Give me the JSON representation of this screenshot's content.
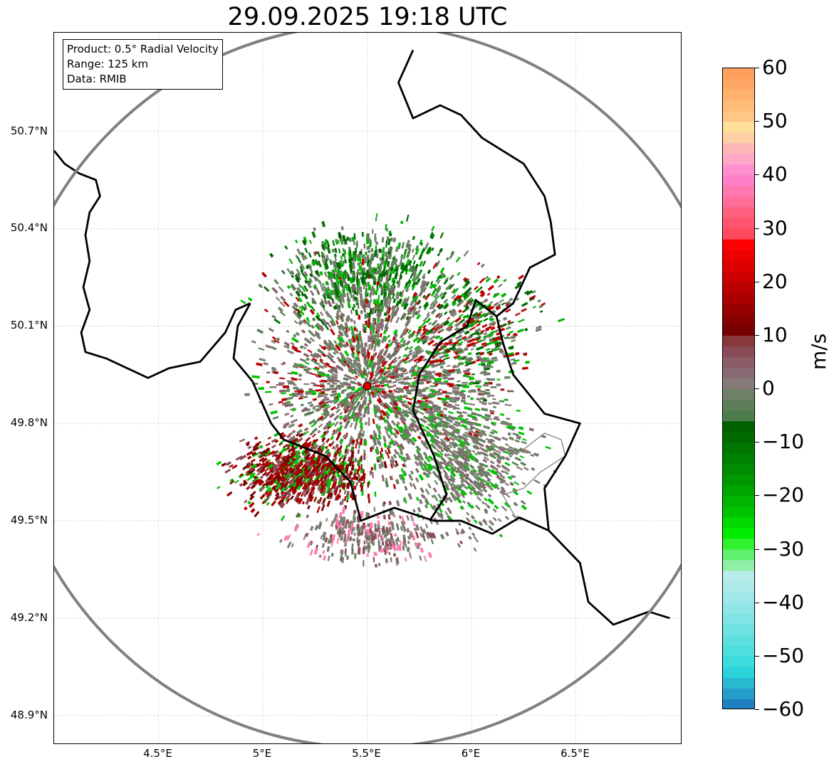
{
  "title": "29.09.2025 19:18 UTC",
  "info": {
    "product": "Product: 0.5° Radial Velocity",
    "range": "Range: 125 km",
    "source": "Data: RMIB"
  },
  "axes": {
    "lat_ticks": [
      {
        "value": 50.7,
        "label": "50.7°N"
      },
      {
        "value": 50.4,
        "label": "50.4°N"
      },
      {
        "value": 50.1,
        "label": "50.1°N"
      },
      {
        "value": 49.8,
        "label": "49.8°N"
      },
      {
        "value": 49.5,
        "label": "49.5°N"
      },
      {
        "value": 49.2,
        "label": "49.2°N"
      },
      {
        "value": 48.9,
        "label": "48.9°N"
      }
    ],
    "lon_ticks": [
      {
        "value": 4.5,
        "label": "4.5°E"
      },
      {
        "value": 5.0,
        "label": "5°E"
      },
      {
        "value": 5.5,
        "label": "5.5°E"
      },
      {
        "value": 6.0,
        "label": "6°E"
      },
      {
        "value": 6.5,
        "label": "6.5°E"
      }
    ],
    "lon_range": [
      4.0,
      7.0
    ],
    "lat_range": [
      48.8,
      51.0
    ]
  },
  "radar": {
    "site_lon": 5.5,
    "site_lat": 49.915,
    "range_km": 125,
    "site_color": "#e00000",
    "ring_color": "#808080"
  },
  "colorbar": {
    "unit": "m/s",
    "min": -60,
    "max": 60,
    "ticks": [
      {
        "value": 60,
        "label": "60"
      },
      {
        "value": 50,
        "label": "50"
      },
      {
        "value": 40,
        "label": "40"
      },
      {
        "value": 30,
        "label": "30"
      },
      {
        "value": 20,
        "label": "20"
      },
      {
        "value": 10,
        "label": "10"
      },
      {
        "value": 0,
        "label": "0"
      },
      {
        "value": -10,
        "label": "−10"
      },
      {
        "value": -20,
        "label": "−20"
      },
      {
        "value": -30,
        "label": "−30"
      },
      {
        "value": -40,
        "label": "−40"
      },
      {
        "value": -50,
        "label": "−50"
      },
      {
        "value": -60,
        "label": "−60"
      }
    ],
    "bands": [
      {
        "from": 58,
        "to": 60,
        "color": "#ff9f5e"
      },
      {
        "from": 56,
        "to": 58,
        "color": "#ffa866"
      },
      {
        "from": 54,
        "to": 56,
        "color": "#ffb26e"
      },
      {
        "from": 52,
        "to": 54,
        "color": "#ffbd78"
      },
      {
        "from": 50,
        "to": 52,
        "color": "#ffc785"
      },
      {
        "from": 48,
        "to": 50,
        "color": "#ffe09a"
      },
      {
        "from": 46,
        "to": 48,
        "color": "#ffd0a6"
      },
      {
        "from": 44,
        "to": 46,
        "color": "#ffb8b8"
      },
      {
        "from": 42,
        "to": 44,
        "color": "#ffa8c8"
      },
      {
        "from": 40,
        "to": 42,
        "color": "#ff90d0"
      },
      {
        "from": 38,
        "to": 40,
        "color": "#ff80c8"
      },
      {
        "from": 36,
        "to": 38,
        "color": "#ff78b0"
      },
      {
        "from": 34,
        "to": 36,
        "color": "#ff6e98"
      },
      {
        "from": 32,
        "to": 34,
        "color": "#ff6080"
      },
      {
        "from": 30,
        "to": 32,
        "color": "#ff5570"
      },
      {
        "from": 28,
        "to": 30,
        "color": "#ff4a5e"
      },
      {
        "from": 26,
        "to": 28,
        "color": "#ff0000"
      },
      {
        "from": 24,
        "to": 26,
        "color": "#ee0000"
      },
      {
        "from": 22,
        "to": 24,
        "color": "#dd0000"
      },
      {
        "from": 20,
        "to": 22,
        "color": "#cc0000"
      },
      {
        "from": 18,
        "to": 20,
        "color": "#bb0000"
      },
      {
        "from": 16,
        "to": 18,
        "color": "#aa0000"
      },
      {
        "from": 14,
        "to": 16,
        "color": "#990000"
      },
      {
        "from": 12,
        "to": 14,
        "color": "#880000"
      },
      {
        "from": 10,
        "to": 12,
        "color": "#770000"
      },
      {
        "from": 8,
        "to": 10,
        "color": "#883838"
      },
      {
        "from": 6,
        "to": 8,
        "color": "#8a4c56"
      },
      {
        "from": 4,
        "to": 6,
        "color": "#8a5c68"
      },
      {
        "from": 2,
        "to": 4,
        "color": "#886a72"
      },
      {
        "from": 0,
        "to": 2,
        "color": "#857a76"
      },
      {
        "from": -2,
        "to": 0,
        "color": "#6e8068"
      },
      {
        "from": -4,
        "to": -2,
        "color": "#5e7e5a"
      },
      {
        "from": -6,
        "to": -4,
        "color": "#4e7c4c"
      },
      {
        "from": -8,
        "to": -6,
        "color": "#006000"
      },
      {
        "from": -10,
        "to": -8,
        "color": "#006a00"
      },
      {
        "from": -12,
        "to": -10,
        "color": "#007500"
      },
      {
        "from": -14,
        "to": -12,
        "color": "#008000"
      },
      {
        "from": -16,
        "to": -14,
        "color": "#008c00"
      },
      {
        "from": -18,
        "to": -16,
        "color": "#009800"
      },
      {
        "from": -20,
        "to": -18,
        "color": "#00a400"
      },
      {
        "from": -22,
        "to": -20,
        "color": "#00b400"
      },
      {
        "from": -24,
        "to": -22,
        "color": "#00c400"
      },
      {
        "from": -26,
        "to": -24,
        "color": "#00d800"
      },
      {
        "from": -28,
        "to": -26,
        "color": "#00ec00"
      },
      {
        "from": -30,
        "to": -28,
        "color": "#30f030"
      },
      {
        "from": -32,
        "to": -30,
        "color": "#60f070"
      },
      {
        "from": -34,
        "to": -32,
        "color": "#90f0a8"
      },
      {
        "from": -36,
        "to": -34,
        "color": "#b8ecea"
      },
      {
        "from": -38,
        "to": -36,
        "color": "#aeeaea"
      },
      {
        "from": -40,
        "to": -38,
        "color": "#a0e8e8"
      },
      {
        "from": -42,
        "to": -40,
        "color": "#90e6e6"
      },
      {
        "from": -44,
        "to": -42,
        "color": "#80e4e4"
      },
      {
        "from": -46,
        "to": -44,
        "color": "#70e2e2"
      },
      {
        "from": -48,
        "to": -46,
        "color": "#5ee0e0"
      },
      {
        "from": -50,
        "to": -48,
        "color": "#4ddede"
      },
      {
        "from": -52,
        "to": -50,
        "color": "#3adcdc"
      },
      {
        "from": -54,
        "to": -52,
        "color": "#2ad4d8"
      },
      {
        "from": -56,
        "to": -54,
        "color": "#28b8d0"
      },
      {
        "from": -58,
        "to": -56,
        "color": "#249ccc"
      },
      {
        "from": -60,
        "to": -58,
        "color": "#2080c0"
      }
    ]
  },
  "echo_regions": [
    {
      "name": "north",
      "lon": 5.5,
      "lat": 50.25,
      "spread_lon": 0.35,
      "spread_lat": 0.12,
      "count": 700,
      "palette": [
        "#006000",
        "#007500",
        "#5e7e5a",
        "#00b400",
        "#6e8068"
      ]
    },
    {
      "name": "center",
      "lon": 5.55,
      "lat": 49.95,
      "spread_lon": 0.45,
      "spread_lat": 0.25,
      "count": 1700,
      "palette": [
        "#857a76",
        "#8a5c68",
        "#6e8068",
        "#886a72",
        "#00c400",
        "#bb0000",
        "#5e7e5a"
      ]
    },
    {
      "name": "southwest",
      "lon": 5.2,
      "lat": 49.65,
      "spread_lon": 0.28,
      "spread_lat": 0.09,
      "count": 900,
      "palette": [
        "#770000",
        "#990000",
        "#aa0000",
        "#8a4c56",
        "#00c400"
      ]
    },
    {
      "name": "southeast",
      "lon": 5.95,
      "lat": 49.7,
      "spread_lon": 0.3,
      "spread_lat": 0.2,
      "count": 800,
      "palette": [
        "#5e7e5a",
        "#6e8068",
        "#857a76",
        "#00c400",
        "#886a72"
      ]
    },
    {
      "name": "east",
      "lon": 6.05,
      "lat": 50.1,
      "spread_lon": 0.25,
      "spread_lat": 0.15,
      "count": 350,
      "palette": [
        "#00b400",
        "#6e8068",
        "#006a00",
        "#bb0000"
      ]
    },
    {
      "name": "south",
      "lon": 5.5,
      "lat": 49.45,
      "spread_lon": 0.3,
      "spread_lat": 0.07,
      "count": 300,
      "palette": [
        "#857a76",
        "#8a4c56",
        "#ff78b0",
        "#6e8068"
      ]
    }
  ],
  "borders": {
    "bold": [
      [
        [
          4.0,
          50.64
        ],
        [
          4.05,
          50.6
        ],
        [
          4.12,
          50.57
        ],
        [
          4.2,
          50.55
        ],
        [
          4.22,
          50.5
        ],
        [
          4.17,
          50.45
        ],
        [
          4.15,
          50.38
        ],
        [
          4.17,
          50.3
        ],
        [
          4.14,
          50.22
        ],
        [
          4.17,
          50.15
        ],
        [
          4.13,
          50.08
        ],
        [
          4.15,
          50.02
        ],
        [
          4.25,
          50.0
        ],
        [
          4.45,
          49.94
        ],
        [
          4.55,
          49.97
        ],
        [
          4.7,
          49.99
        ],
        [
          4.82,
          50.08
        ],
        [
          4.87,
          50.15
        ],
        [
          4.94,
          50.17
        ]
      ],
      [
        [
          4.94,
          50.17
        ],
        [
          4.88,
          50.1
        ],
        [
          4.86,
          50.0
        ],
        [
          4.95,
          49.93
        ],
        [
          5.04,
          49.8
        ],
        [
          5.1,
          49.75
        ],
        [
          5.3,
          49.7
        ],
        [
          5.42,
          49.62
        ],
        [
          5.47,
          49.5
        ],
        [
          5.63,
          49.54
        ],
        [
          5.82,
          49.5
        ],
        [
          5.95,
          49.5
        ],
        [
          6.1,
          49.46
        ],
        [
          6.23,
          49.51
        ],
        [
          6.37,
          49.47
        ],
        [
          6.52,
          49.37
        ],
        [
          6.56,
          49.25
        ],
        [
          6.68,
          49.18
        ],
        [
          6.85,
          49.22
        ],
        [
          6.95,
          49.2
        ]
      ],
      [
        [
          6.12,
          50.13
        ],
        [
          6.02,
          50.18
        ],
        [
          5.98,
          50.1
        ],
        [
          5.85,
          50.05
        ],
        [
          5.75,
          49.95
        ],
        [
          5.72,
          49.84
        ],
        [
          5.82,
          49.7
        ],
        [
          5.88,
          49.58
        ],
        [
          5.8,
          49.5
        ]
      ],
      [
        [
          6.12,
          50.13
        ],
        [
          6.2,
          50.17
        ],
        [
          6.28,
          50.28
        ],
        [
          6.4,
          50.32
        ],
        [
          6.38,
          50.42
        ],
        [
          6.35,
          50.5
        ],
        [
          6.25,
          50.6
        ],
        [
          6.05,
          50.68
        ],
        [
          5.95,
          50.75
        ],
        [
          5.85,
          50.78
        ],
        [
          5.72,
          50.74
        ],
        [
          5.65,
          50.85
        ],
        [
          5.72,
          50.95
        ]
      ],
      [
        [
          6.12,
          50.13
        ],
        [
          6.15,
          50.05
        ],
        [
          6.2,
          49.95
        ],
        [
          6.35,
          49.83
        ],
        [
          6.52,
          49.8
        ],
        [
          6.45,
          49.7
        ],
        [
          6.35,
          49.6
        ],
        [
          6.37,
          49.47
        ]
      ]
    ],
    "thin": [
      [
        [
          6.25,
          49.72
        ],
        [
          6.35,
          49.77
        ],
        [
          6.43,
          49.75
        ],
        [
          6.45,
          49.7
        ],
        [
          6.33,
          49.65
        ],
        [
          6.25,
          49.6
        ],
        [
          6.15,
          49.58
        ],
        [
          6.22,
          49.5
        ]
      ]
    ]
  }
}
